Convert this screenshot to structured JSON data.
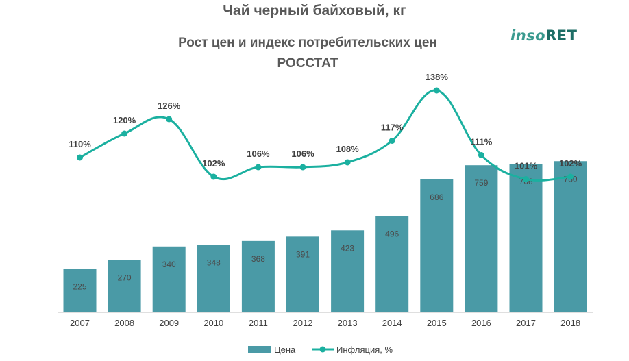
{
  "header": {
    "title": "Чай черный байховый, кг",
    "subtitle": "Рост цен и индекс потребительских цен",
    "source": "РОССТАТ"
  },
  "logo": {
    "part1": "inso",
    "part2": "RET"
  },
  "colors": {
    "bar": "#4a9aa6",
    "line": "#1bb0a0",
    "axis": "#bfbfbf"
  },
  "chart_data": {
    "type": "bar+line",
    "categories": [
      "2007",
      "2008",
      "2009",
      "2010",
      "2011",
      "2012",
      "2013",
      "2014",
      "2015",
      "2016",
      "2017",
      "2018"
    ],
    "series": [
      {
        "name": "Цена",
        "type": "bar",
        "values": [
          225,
          270,
          340,
          348,
          368,
          391,
          423,
          496,
          686,
          759,
          766,
          780
        ],
        "labels": [
          "225",
          "270",
          "340",
          "348",
          "368",
          "391",
          "423",
          "496",
          "686",
          "759",
          "766",
          "780"
        ]
      },
      {
        "name": "Инфляция, %",
        "type": "line",
        "values": [
          110,
          120,
          126,
          102,
          106,
          106,
          108,
          117,
          138,
          111,
          101,
          102
        ],
        "labels": [
          "110%",
          "120%",
          "126%",
          "102%",
          "106%",
          "106%",
          "108%",
          "117%",
          "138%",
          "111%",
          "101%",
          "102%"
        ]
      }
    ],
    "legend": "bottom",
    "grid": false
  }
}
